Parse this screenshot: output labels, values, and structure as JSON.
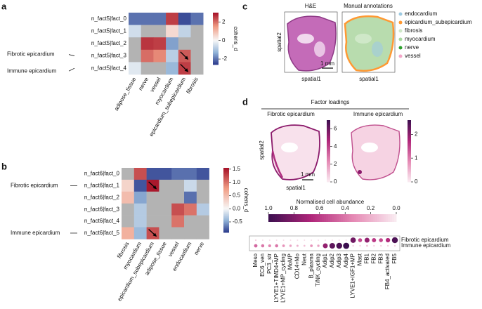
{
  "panel_labels": [
    "a",
    "b",
    "c",
    "d"
  ],
  "chart_data": [
    {
      "type": "heatmap",
      "rows": [
        "n_fact5|fact_0",
        "n_fact5|fact_1",
        "n_fact5|fact_2",
        "n_fact5|fact_3",
        "n_fact5|fact_4"
      ],
      "columns": [
        "adipose_tissue",
        "nerve",
        "vessel",
        "myocardium",
        "epicardium_subepicardium",
        "fibrosis"
      ],
      "values": [
        [
          -2.0,
          -2.0,
          -2.0,
          2.5,
          -2.4,
          -2.0
        ],
        [
          -0.5,
          null,
          null,
          0.5,
          -0.7,
          null
        ],
        [
          null,
          2.6,
          2.5,
          -1.5,
          null,
          null
        ],
        [
          null,
          2.0,
          1.7,
          -0.8,
          2.2,
          null
        ],
        [
          -0.3,
          null,
          null,
          -1.2,
          2.5,
          null
        ]
      ],
      "zlim": [
        -2.6,
        3
      ],
      "zticks": [
        -2,
        0,
        2
      ],
      "zlabel": "cohens_d",
      "annotations": [
        "Fibrotic epicardium",
        "Immune epicardium"
      ]
    },
    {
      "type": "heatmap",
      "rows": [
        "n_fact6|fact_0",
        "n_fact6|fact_1",
        "n_fact6|fact_2",
        "n_fact6|fact_3",
        "n_fact6|fact_4",
        "n_fact6|fact_5"
      ],
      "columns": [
        "fibrosis",
        "myocardium",
        "epicardium_subepicardium",
        "adipose_tissue",
        "vessel",
        "endocardium",
        "nerve"
      ],
      "values": [
        [
          null,
          1.2,
          -0.8,
          -0.8,
          -0.7,
          -0.7,
          -0.8
        ],
        [
          0.3,
          -0.8,
          1.5,
          null,
          null,
          -0.2,
          null
        ],
        [
          0.5,
          -0.5,
          null,
          null,
          null,
          -0.7,
          null
        ],
        [
          null,
          -0.3,
          null,
          null,
          1.2,
          1.0,
          -0.3
        ],
        [
          null,
          -0.3,
          null,
          null,
          1.0,
          null,
          null
        ],
        [
          0.6,
          -0.4,
          1.2,
          null,
          null,
          null,
          null
        ]
      ],
      "zlim": [
        -0.9,
        1.55
      ],
      "zticks": [
        -0.5,
        {
          "value": 0,
          "label": "0.0"
        },
        0.5,
        {
          "value": 1,
          "label": "1.0"
        },
        1.5
      ],
      "zlabel": "cohens_d",
      "annotations": [
        "Fibrotic epicardium",
        "Immune epicardium"
      ]
    },
    {
      "type": "dot",
      "title": "Normalised cell abundance",
      "categories": [
        "Meso",
        "EC6_ven",
        "PC3_str",
        "LYVE1+TIMD4+MP",
        "LYVE1+MP_cycling",
        "MoMP",
        "CD14+Mo",
        "Neut",
        "B_plasma",
        "T/NK_cycling",
        "Adip1",
        "Adip2",
        "Adip3",
        "Adip4",
        "LYVE1+IGF1+MP",
        "Mast",
        "FB1",
        "FB2",
        "FB3",
        "FB4_activated",
        "FB5"
      ],
      "series": [
        {
          "name": "Fibrotic epicardium",
          "values": [
            0.1,
            0.05,
            0.05,
            0.05,
            0.05,
            0.05,
            0.05,
            0.05,
            0.05,
            0.05,
            0.05,
            0.05,
            0.05,
            0.05,
            0.85,
            0.55,
            0.75,
            0.6,
            0.55,
            0.65,
            0.95
          ]
        },
        {
          "name": "Immune epicardium",
          "values": [
            0.45,
            0.4,
            0.35,
            0.4,
            0.3,
            0.25,
            0.2,
            0.15,
            0.3,
            0.25,
            0.75,
            0.9,
            0.95,
            1.0,
            0.1,
            0.1,
            0.15,
            0.1,
            0.1,
            0.1,
            0.1
          ]
        }
      ],
      "clim": [
        1,
        0
      ],
      "cticks": [
        {
          "value": 1,
          "label": "1.0"
        },
        0.8,
        0.6,
        0.4,
        0.2,
        {
          "value": 0,
          "label": "0.0"
        }
      ]
    }
  ],
  "panel_c": {
    "titles": [
      "H&E",
      "Manual annotations"
    ],
    "xlabel": "spatial1",
    "ylabel": "spatial2",
    "scale_bar": "1 mm",
    "legend": [
      {
        "label": "endocardium",
        "color": "#9ecae1"
      },
      {
        "label": "epicardium_subepicardium",
        "color": "#ff9933"
      },
      {
        "label": "fibrosis",
        "color": "#cfe8c8"
      },
      {
        "label": "myocardium",
        "color": "#a8d8a0"
      },
      {
        "label": "nerve",
        "color": "#2ca02c"
      },
      {
        "label": "vessel",
        "color": "#f4a6c8"
      }
    ]
  },
  "panel_d": {
    "title": "Factor loadings",
    "xlabel": "spatial1",
    "ylabel": "spatial2",
    "scale_bar": "1 mm",
    "maps": [
      {
        "title": "Fibrotic epicardium",
        "clim": [
          0,
          7
        ],
        "cticks": [
          0,
          2,
          4,
          6
        ]
      },
      {
        "title": "Immune epicardium",
        "clim": [
          0,
          2.6
        ],
        "cticks": [
          0,
          1,
          2
        ]
      }
    ]
  }
}
